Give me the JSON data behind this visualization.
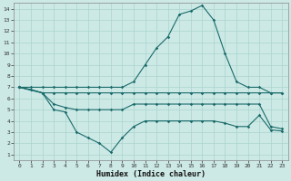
{
  "xlabel": "Humidex (Indice chaleur)",
  "bg_color": "#cce9e5",
  "grid_color": "#aad4cf",
  "line_color": "#1a6b6b",
  "xlim": [
    -0.5,
    23.5
  ],
  "ylim": [
    0.5,
    14.5
  ],
  "xticks": [
    0,
    1,
    2,
    3,
    4,
    5,
    6,
    7,
    8,
    9,
    10,
    11,
    12,
    13,
    14,
    15,
    16,
    17,
    18,
    19,
    20,
    21,
    22,
    23
  ],
  "yticks": [
    1,
    2,
    3,
    4,
    5,
    6,
    7,
    8,
    9,
    10,
    11,
    12,
    13,
    14
  ],
  "line1_x": [
    0,
    1,
    2,
    3,
    4,
    5,
    6,
    7,
    8,
    9,
    10,
    11,
    12,
    13,
    14,
    15,
    16,
    17,
    18,
    19,
    20,
    21,
    22,
    23
  ],
  "line1_y": [
    7.0,
    7.0,
    7.0,
    7.0,
    7.0,
    7.0,
    7.0,
    7.0,
    7.0,
    7.0,
    7.5,
    9.0,
    10.5,
    11.5,
    13.5,
    13.8,
    14.3,
    13.0,
    10.0,
    7.5,
    7.0,
    7.0,
    6.5,
    6.5
  ],
  "line2_x": [
    0,
    2,
    3,
    4,
    5,
    6,
    7,
    8,
    9,
    10,
    11,
    12,
    13,
    14,
    15,
    16,
    17,
    18,
    19,
    20,
    21,
    22,
    23
  ],
  "line2_y": [
    7.0,
    6.5,
    6.5,
    6.5,
    6.5,
    6.5,
    6.5,
    6.5,
    6.5,
    6.5,
    6.5,
    6.5,
    6.5,
    6.5,
    6.5,
    6.5,
    6.5,
    6.5,
    6.5,
    6.5,
    6.5,
    6.5,
    6.5
  ],
  "line3_x": [
    0,
    1,
    2,
    3,
    4,
    5,
    6,
    7,
    8,
    9,
    10,
    11,
    12,
    13,
    14,
    15,
    16,
    17,
    18,
    19,
    20,
    21,
    22,
    23
  ],
  "line3_y": [
    7.0,
    6.8,
    6.5,
    5.0,
    4.8,
    3.0,
    2.5,
    2.0,
    1.2,
    2.5,
    3.5,
    4.0,
    4.0,
    4.0,
    4.0,
    4.0,
    4.0,
    4.0,
    3.8,
    3.5,
    3.5,
    4.5,
    3.2,
    3.1
  ],
  "line4_x": [
    0,
    2,
    3,
    4,
    5,
    6,
    7,
    8,
    9,
    10,
    11,
    12,
    13,
    14,
    15,
    16,
    17,
    18,
    19,
    20,
    21,
    22,
    23
  ],
  "line4_y": [
    7.0,
    6.5,
    5.5,
    5.2,
    5.0,
    5.0,
    5.0,
    5.0,
    5.0,
    5.5,
    5.5,
    5.5,
    5.5,
    5.5,
    5.5,
    5.5,
    5.5,
    5.5,
    5.5,
    5.5,
    5.5,
    3.5,
    3.3
  ]
}
